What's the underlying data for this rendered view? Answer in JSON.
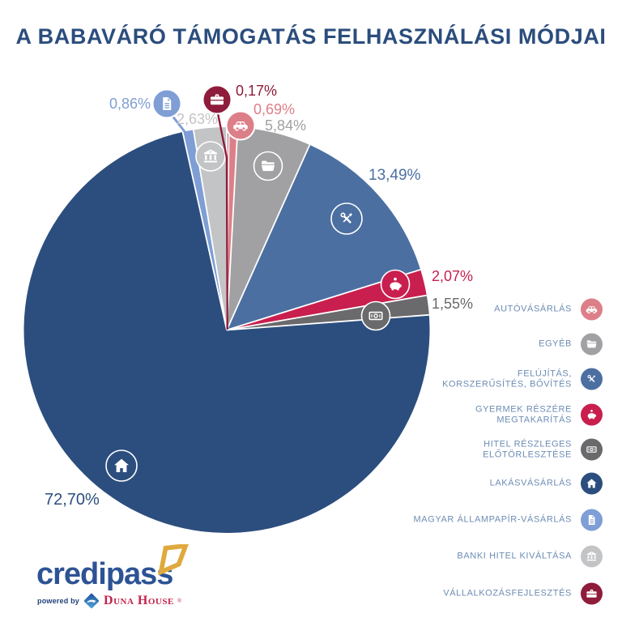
{
  "title": "A BABAVÁRÓ TÁMOGATÁS FELHASZNÁLÁSI MÓDJAI",
  "chart_data": {
    "type": "pie",
    "title": "A BABAVÁRÓ TÁMOGATÁS FELHASZNÁLÁSI MÓDJAI",
    "unit": "percent",
    "total": 100.0,
    "start_angle_deg": 0,
    "direction": "clockwise",
    "slices": [
      {
        "id": "vallalkozasfejlesztes",
        "label": "VÁLLALKOZÁSFEJLESZTÉS",
        "value": 0.17,
        "display": "0,17%",
        "color": "#8e1c3a",
        "icon": "briefcase-icon"
      },
      {
        "id": "autovasarlas",
        "label": "AUTÓVÁSÁRLÁS",
        "value": 0.69,
        "display": "0,69%",
        "color": "#dd7f88",
        "icon": "car-icon"
      },
      {
        "id": "egyeb",
        "label": "EGYÉB",
        "value": 5.84,
        "display": "5,84%",
        "color": "#a1a1a3",
        "icon": "folder-icon"
      },
      {
        "id": "felujitas",
        "label": "FELÚJÍTÁS, KORSZERŰSÍTÉS, BŐVÍTÉS",
        "value": 13.49,
        "display": "13,49%",
        "color": "#4c6fa1",
        "icon": "tools-icon"
      },
      {
        "id": "gyermek",
        "label": "GYERMEK RÉSZÉRE MEGTAKARÍTÁS",
        "value": 2.07,
        "display": "2,07%",
        "color": "#c81f4e",
        "icon": "piggy-bank-icon"
      },
      {
        "id": "hitel_reszleges",
        "label": "HITEL RÉSZLEGES ELŐTÖRLESZTÉSE",
        "value": 1.55,
        "display": "1,55%",
        "color": "#6a6a6c",
        "icon": "banknote-icon"
      },
      {
        "id": "lakasvasarlas",
        "label": "LAKÁSVÁSÁRLÁS",
        "value": 72.7,
        "display": "72,70%",
        "color": "#2c4e7e",
        "icon": "house-icon"
      },
      {
        "id": "allampapir",
        "label": "MAGYAR ÁLLAMPAPÍR-VÁSÁRLÁS",
        "value": 0.86,
        "display": "0,86%",
        "color": "#7e9ed5",
        "icon": "document-icon"
      },
      {
        "id": "banki_hitel",
        "label": "BANKI HITEL KIVÁLTÁSA",
        "value": 2.63,
        "display": "2,63%",
        "color": "#c3c4c6",
        "icon": "bank-icon"
      }
    ]
  },
  "legend": {
    "items": [
      {
        "slice": "autovasarlas",
        "lines": [
          "AUTÓVÁSÁRLÁS"
        ]
      },
      {
        "slice": "egyeb",
        "lines": [
          "EGYÉB"
        ]
      },
      {
        "slice": "felujitas",
        "lines": [
          "FELÚJÍTÁS,",
          "KORSZERŰSÍTÉS, BŐVÍTÉS"
        ]
      },
      {
        "slice": "gyermek",
        "lines": [
          "GYERMEK RÉSZÉRE",
          "MEGTAKARÍTÁS"
        ]
      },
      {
        "slice": "hitel_reszleges",
        "lines": [
          "HITEL RÉSZLEGES",
          "ELŐTÖRLESZTÉSE"
        ]
      },
      {
        "slice": "lakasvasarlas",
        "lines": [
          "LAKÁSVÁSÁRLÁS"
        ]
      },
      {
        "slice": "allampapir",
        "lines": [
          "MAGYAR ÁLLAMPAPÍR-VÁSÁRLÁS"
        ]
      },
      {
        "slice": "banki_hitel",
        "lines": [
          "BANKI HITEL KIVÁLTÁSA"
        ]
      },
      {
        "slice": "vallalkozasfejlesztes",
        "lines": [
          "VÁLLALKOZÁSFEJLESZTÉS"
        ]
      }
    ]
  },
  "logo": {
    "brand": "credipass",
    "powered_by": "powered by",
    "partner": "Duna House",
    "registered": "®"
  },
  "colors": {
    "title": "#2b4d7d",
    "legend_text": "#6d8cb4",
    "logo_blue": "#2d5394",
    "logo_gold": "#dfa93d",
    "duna_red": "#c5234b",
    "background": "#ffffff"
  }
}
